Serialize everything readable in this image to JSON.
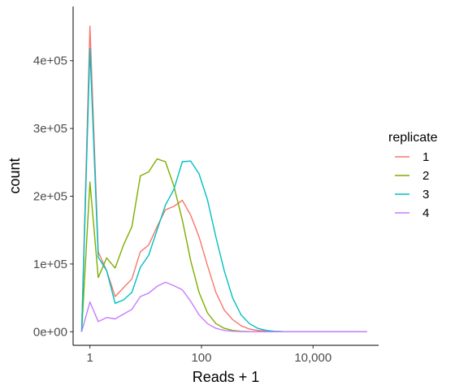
{
  "chart_data": {
    "type": "line",
    "xlabel": "Reads + 1",
    "ylabel": "count",
    "x_scale": "log10",
    "xlim": [
      0.5,
      150000
    ],
    "ylim": [
      -20000,
      480000
    ],
    "x_ticks": [
      {
        "value": 1,
        "label": "1"
      },
      {
        "value": 100,
        "label": "100"
      },
      {
        "value": 10000,
        "label": "10,000"
      }
    ],
    "y_ticks": [
      {
        "value": 0,
        "label": "0e+00"
      },
      {
        "value": 100000,
        "label": "1e+05"
      },
      {
        "value": 200000,
        "label": "2e+05"
      },
      {
        "value": 300000,
        "label": "3e+05"
      },
      {
        "value": 400000,
        "label": "4e+05"
      }
    ],
    "grid": false,
    "legend": {
      "title": "replicate",
      "placement": "right"
    },
    "x": [
      0.71,
      1.0,
      1.41,
      2.0,
      2.83,
      4.0,
      5.66,
      8.0,
      11.3,
      16.0,
      22.6,
      32.0,
      45.3,
      64.0,
      90.5,
      128,
      181,
      256,
      362,
      512,
      724,
      1024,
      1448,
      2048,
      2896,
      4096,
      5793,
      8192,
      11585,
      16384,
      23170,
      32768,
      46341,
      65536,
      92682
    ],
    "series": [
      {
        "name": "1",
        "color": "#F8766D",
        "values": [
          0,
          451000,
          118000,
          90000,
          52000,
          65000,
          78000,
          118000,
          128000,
          155000,
          180000,
          185000,
          194000,
          172000,
          140000,
          98000,
          58000,
          32000,
          18000,
          9000,
          4000,
          2000,
          1000,
          500,
          200,
          100,
          50,
          0,
          0,
          0,
          0,
          0,
          0,
          0,
          0
        ]
      },
      {
        "name": "2",
        "color": "#7CAE00",
        "values": [
          0,
          221000,
          80000,
          109000,
          94000,
          128000,
          155000,
          230000,
          236000,
          255000,
          251000,
          215000,
          165000,
          105000,
          58000,
          28000,
          12000,
          5000,
          2000,
          800,
          300,
          100,
          0,
          0,
          0,
          0,
          0,
          0,
          0,
          0,
          0,
          0,
          0,
          0,
          0
        ]
      },
      {
        "name": "3",
        "color": "#00BFC4",
        "values": [
          0,
          418000,
          110000,
          90000,
          42000,
          47000,
          58000,
          95000,
          113000,
          150000,
          187000,
          210000,
          251000,
          252000,
          233000,
          195000,
          140000,
          90000,
          50000,
          25000,
          12000,
          5000,
          2000,
          800,
          300,
          100,
          0,
          0,
          0,
          0,
          0,
          0,
          0,
          0,
          0
        ]
      },
      {
        "name": "4",
        "color": "#C77CFF",
        "values": [
          0,
          44000,
          15000,
          21000,
          19000,
          26000,
          33000,
          52000,
          57000,
          67000,
          73000,
          68000,
          62000,
          45000,
          25000,
          12000,
          5000,
          2000,
          800,
          300,
          100,
          0,
          0,
          0,
          0,
          0,
          0,
          0,
          0,
          0,
          0,
          0,
          0,
          0,
          0
        ]
      }
    ]
  }
}
